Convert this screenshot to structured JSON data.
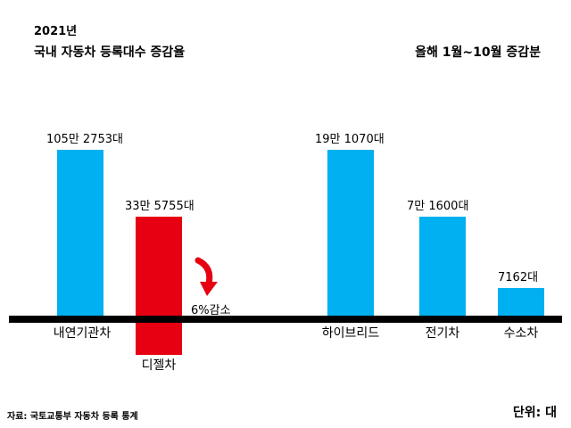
{
  "header": {
    "year": "2021년",
    "title": "국내 자동차 등록대수 증감율",
    "period": "올해 1월~10월 증감분"
  },
  "footer": {
    "source": "자료: 국토교통부 자동차 등록 통계",
    "unit": "단위: 대"
  },
  "colors": {
    "increase": "#00b0f0",
    "decrease": "#e60012",
    "axis": "#000000",
    "arrow": "#e60012"
  },
  "chart_data": {
    "type": "bar",
    "categories": [
      "내연기관차",
      "디젤차",
      "하이브리드",
      "전기차",
      "수소차"
    ],
    "values": [
      1052753,
      -335755,
      191070,
      71600,
      7162
    ],
    "value_labels": [
      "105만 2753대",
      "33만 5755대",
      "19만 1070대",
      "7만 1600대",
      "7162대"
    ],
    "annotation": {
      "text": "6%감소",
      "target": "디젤차",
      "icon": "curved-down-arrow-icon"
    },
    "axis_visible": false,
    "grid": false,
    "legend": "none"
  }
}
